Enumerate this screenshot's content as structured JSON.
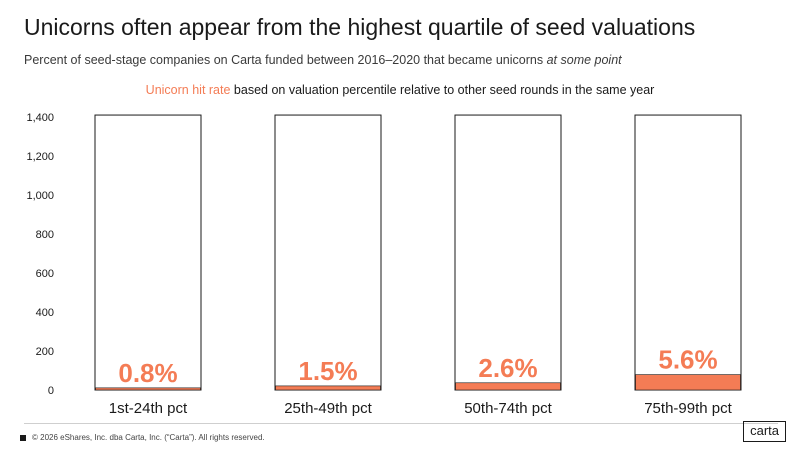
{
  "header": {
    "title": "Unicorns often appear from the highest quartile of seed valuations",
    "subtitle_main": "Percent of seed-stage companies on Carta funded between 2016–2020 that became unicorns",
    "subtitle_emphasis": "at some point"
  },
  "legend": {
    "accent_label": "Unicorn hit rate",
    "rest": "based on valuation percentile relative to other seed rounds in the same year"
  },
  "chart_data": {
    "type": "bar",
    "title": "Unicorns often appear from the highest quartile of seed valuations",
    "xlabel": "",
    "ylabel": "",
    "ylim": [
      0,
      1400
    ],
    "yticks": [
      0,
      200,
      400,
      600,
      800,
      1000,
      1200,
      1400
    ],
    "ytick_labels": [
      "0",
      "200",
      "400",
      "600",
      "800",
      "1,000",
      "1,200",
      "1,400"
    ],
    "categories": [
      "1st-24th pct",
      "25th-49th pct",
      "50th-74th pct",
      "75th-99th pct"
    ],
    "series": [
      {
        "name": "Seed-stage companies",
        "values": [
          1410,
          1410,
          1410,
          1410
        ],
        "color": "#ffffff",
        "stroke": "#1a1a1a"
      },
      {
        "name": "Unicorns",
        "values": [
          11,
          21,
          37,
          79
        ],
        "color": "#f47c55"
      }
    ],
    "data_labels": [
      "0.8%",
      "1.5%",
      "2.6%",
      "5.6%"
    ],
    "label_color": "#f47c55"
  },
  "footer": {
    "copyright": "© 2026 eShares, Inc. dba Carta, Inc. (“Carta”). All rights reserved."
  },
  "brand": {
    "logo_text": "carta"
  }
}
